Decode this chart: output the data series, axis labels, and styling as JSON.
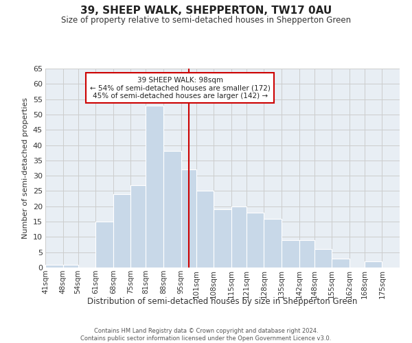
{
  "title": "39, SHEEP WALK, SHEPPERTON, TW17 0AU",
  "subtitle": "Size of property relative to semi-detached houses in Shepperton Green",
  "xlabel": "Distribution of semi-detached houses by size in Shepperton Green",
  "ylabel": "Number of semi-detached properties",
  "footer_line1": "Contains HM Land Registry data © Crown copyright and database right 2024.",
  "footer_line2": "Contains public sector information licensed under the Open Government Licence v3.0.",
  "bin_labels": [
    "41sqm",
    "48sqm",
    "54sqm",
    "61sqm",
    "68sqm",
    "75sqm",
    "81sqm",
    "88sqm",
    "95sqm",
    "101sqm",
    "108sqm",
    "115sqm",
    "121sqm",
    "128sqm",
    "135sqm",
    "142sqm",
    "148sqm",
    "155sqm",
    "162sqm",
    "168sqm",
    "175sqm"
  ],
  "bin_edges": [
    41,
    48,
    54,
    61,
    68,
    75,
    81,
    88,
    95,
    101,
    108,
    115,
    121,
    128,
    135,
    142,
    148,
    155,
    162,
    168,
    175,
    182
  ],
  "counts": [
    1,
    1,
    0,
    15,
    24,
    27,
    53,
    38,
    32,
    25,
    19,
    20,
    18,
    16,
    9,
    9,
    6,
    3,
    0,
    2,
    0
  ],
  "bar_color": "#c8d8e8",
  "bar_edge_color": "#ffffff",
  "property_value": 98,
  "vline_color": "#cc0000",
  "annotation_title": "39 SHEEP WALK: 98sqm",
  "annotation_line1": "← 54% of semi-detached houses are smaller (172)",
  "annotation_line2": "45% of semi-detached houses are larger (142) →",
  "annotation_box_edge": "#cc0000",
  "annotation_box_fill": "#ffffff",
  "bg_color": "#e8eef4",
  "ylim": [
    0,
    65
  ],
  "yticks": [
    0,
    5,
    10,
    15,
    20,
    25,
    30,
    35,
    40,
    45,
    50,
    55,
    60,
    65
  ]
}
